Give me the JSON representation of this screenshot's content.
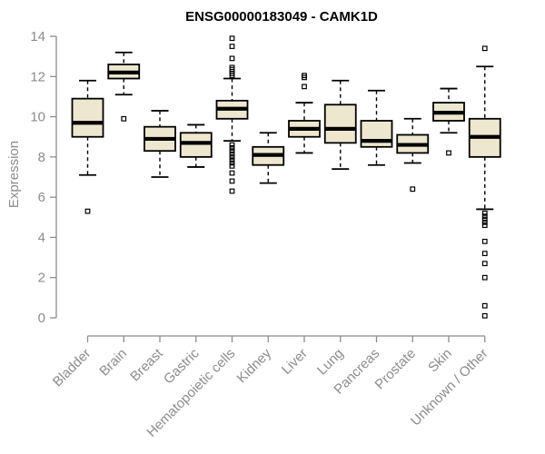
{
  "chart_data": {
    "type": "boxplot",
    "title": "ENSG00000183049 - CAMK1D",
    "ylabel": "Expression",
    "xlabel": "",
    "ylim": [
      0,
      14
    ],
    "yticks": [
      0,
      2,
      4,
      6,
      8,
      10,
      12,
      14
    ],
    "grid": false,
    "legend": "none",
    "categories": [
      "Bladder",
      "Brain",
      "Breast",
      "Gastric",
      "Hematopoietic cells",
      "Kidney",
      "Liver",
      "Lung",
      "Pancreas",
      "Prostate",
      "Skin",
      "Unknown / Other"
    ],
    "boxes": [
      {
        "category": "Bladder",
        "low": 7.1,
        "q1": 9.0,
        "median": 9.7,
        "q3": 10.9,
        "high": 11.8,
        "outliers": [
          5.3
        ]
      },
      {
        "category": "Brain",
        "low": 11.1,
        "q1": 11.9,
        "median": 12.2,
        "q3": 12.6,
        "high": 13.2,
        "outliers": [
          9.9
        ]
      },
      {
        "category": "Breast",
        "low": 7.0,
        "q1": 8.3,
        "median": 8.9,
        "q3": 9.5,
        "high": 10.3,
        "outliers": []
      },
      {
        "category": "Gastric",
        "low": 7.5,
        "q1": 8.0,
        "median": 8.7,
        "q3": 9.2,
        "high": 9.6,
        "outliers": []
      },
      {
        "category": "Hematopoietic cells",
        "low": 8.8,
        "q1": 9.9,
        "median": 10.4,
        "q3": 10.8,
        "high": 11.9,
        "outliers": [
          13.9,
          13.5,
          12.9,
          12.45,
          12.35,
          12.25,
          12.15,
          12.05,
          8.6,
          8.45,
          8.3,
          8.15,
          8.0,
          7.85,
          7.7,
          7.55,
          7.2,
          6.8,
          6.3
        ]
      },
      {
        "category": "Kidney",
        "low": 6.7,
        "q1": 7.6,
        "median": 8.1,
        "q3": 8.5,
        "high": 9.2,
        "outliers": []
      },
      {
        "category": "Liver",
        "low": 8.2,
        "q1": 9.0,
        "median": 9.4,
        "q3": 9.8,
        "high": 10.7,
        "outliers": [
          12.05,
          11.95,
          11.5
        ]
      },
      {
        "category": "Lung",
        "low": 7.4,
        "q1": 8.7,
        "median": 9.4,
        "q3": 10.6,
        "high": 11.8,
        "outliers": []
      },
      {
        "category": "Pancreas",
        "low": 7.6,
        "q1": 8.5,
        "median": 8.8,
        "q3": 9.8,
        "high": 11.3,
        "outliers": []
      },
      {
        "category": "Prostate",
        "low": 7.7,
        "q1": 8.2,
        "median": 8.6,
        "q3": 9.1,
        "high": 9.9,
        "outliers": [
          6.4
        ]
      },
      {
        "category": "Skin",
        "low": 9.2,
        "q1": 9.8,
        "median": 10.2,
        "q3": 10.7,
        "high": 11.4,
        "outliers": [
          8.2
        ]
      },
      {
        "category": "Unknown / Other",
        "low": 5.4,
        "q1": 8.0,
        "median": 9.0,
        "q3": 9.9,
        "high": 12.5,
        "outliers": [
          13.4,
          5.2,
          5.05,
          4.9,
          4.75,
          4.6,
          3.8,
          3.2,
          2.7,
          2.0,
          0.6,
          0.1
        ]
      }
    ],
    "colors": {
      "box_fill": "#ede7cf",
      "box_border": "#000000",
      "median": "#000000",
      "whisker": "#000000",
      "outlier": "#000000",
      "axis": "#8c8c8c",
      "tick_label": "#8c8c8c",
      "title": "#000000",
      "background": "#ffffff"
    }
  }
}
